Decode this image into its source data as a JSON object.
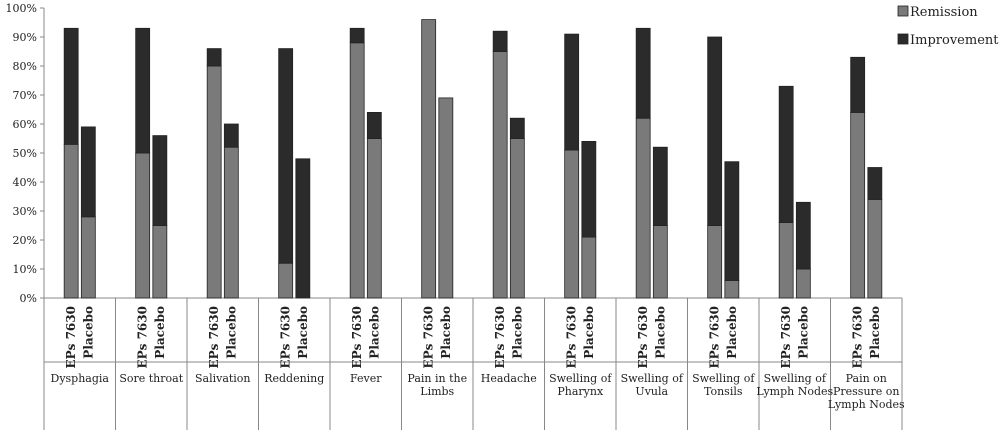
{
  "chart_data": {
    "type": "bar",
    "stacked": true,
    "title": "",
    "xlabel": "",
    "ylabel": "",
    "ylim": [
      0,
      100
    ],
    "yticks": [
      "0%",
      "10%",
      "20%",
      "30%",
      "40%",
      "50%",
      "60%",
      "70%",
      "80%",
      "90%",
      "100%"
    ],
    "grid": false,
    "legend": {
      "placement": "top-right",
      "entries": [
        "Remission",
        "Improvement"
      ]
    },
    "colors": {
      "Remission": "#7a7a7a",
      "Improvement": "#2b2b2b"
    },
    "bar_labels": [
      "EPs 7630",
      "Placebo"
    ],
    "groups": [
      {
        "label": "Dysphagia",
        "bars": [
          {
            "remission": 53,
            "improvement": 40
          },
          {
            "remission": 28,
            "improvement": 31
          }
        ]
      },
      {
        "label": "Sore throat",
        "bars": [
          {
            "remission": 50,
            "improvement": 43
          },
          {
            "remission": 25,
            "improvement": 31
          }
        ]
      },
      {
        "label": "Salivation",
        "bars": [
          {
            "remission": 80,
            "improvement": 6
          },
          {
            "remission": 52,
            "improvement": 8
          }
        ]
      },
      {
        "label": "Reddening",
        "bars": [
          {
            "remission": 12,
            "improvement": 74
          },
          {
            "remission": 0,
            "improvement": 48
          }
        ]
      },
      {
        "label": "Fever",
        "bars": [
          {
            "remission": 88,
            "improvement": 5
          },
          {
            "remission": 55,
            "improvement": 9
          }
        ]
      },
      {
        "label": "Pain in the Limbs",
        "bars": [
          {
            "remission": 96,
            "improvement": 0
          },
          {
            "remission": 69,
            "improvement": 0
          }
        ]
      },
      {
        "label": "Headache",
        "bars": [
          {
            "remission": 85,
            "improvement": 7
          },
          {
            "remission": 55,
            "improvement": 7
          }
        ]
      },
      {
        "label": "Swelling of Pharynx",
        "bars": [
          {
            "remission": 51,
            "improvement": 40
          },
          {
            "remission": 21,
            "improvement": 33
          }
        ]
      },
      {
        "label": "Swelling of Uvula",
        "bars": [
          {
            "remission": 62,
            "improvement": 31
          },
          {
            "remission": 25,
            "improvement": 27
          }
        ]
      },
      {
        "label": "Swelling of Tonsils",
        "bars": [
          {
            "remission": 25,
            "improvement": 65
          },
          {
            "remission": 6,
            "improvement": 41
          }
        ]
      },
      {
        "label": "Swelling of Lymph Nodes",
        "bars": [
          {
            "remission": 26,
            "improvement": 47
          },
          {
            "remission": 10,
            "improvement": 23
          }
        ]
      },
      {
        "label": "Pain on Pressure on Lymph Nodes",
        "bars": [
          {
            "remission": 64,
            "improvement": 19
          },
          {
            "remission": 34,
            "improvement": 11
          }
        ]
      }
    ]
  }
}
